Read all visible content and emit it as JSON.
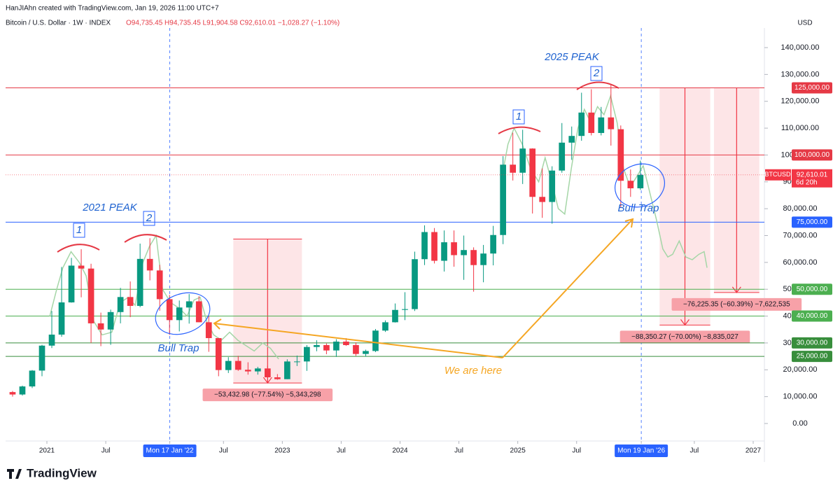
{
  "attribution": "HanJIAhn created with TradingView.com, Jan 19, 2026 11:00 UTC+7",
  "logo": "TradingView",
  "chart_data": {
    "type": "candlestick",
    "title": "Bitcoin / U.S. Dollar · 1W · INDEX",
    "ohlc": "O94,735.45 H94,735.45 L91,904.58 C92,610.01 −1,028.27 (−1.10%)",
    "currency": "USD",
    "up_color": "#089981",
    "down_color": "#f23645",
    "x": [
      "2020-09",
      "2020-10",
      "2020-11",
      "2020-12",
      "2021-01",
      "2021-02",
      "2021-03",
      "2021-04",
      "2021-05",
      "2021-06",
      "2021-07",
      "2021-08",
      "2021-09",
      "2021-10",
      "2021-11",
      "2021-12",
      "2022-01",
      "2022-02",
      "2022-03",
      "2022-04",
      "2022-05",
      "2022-06",
      "2022-07",
      "2022-08",
      "2022-09",
      "2022-10",
      "2022-11",
      "2022-12",
      "2023-01",
      "2023-02",
      "2023-03",
      "2023-04",
      "2023-05",
      "2023-06",
      "2023-07",
      "2023-08",
      "2023-09",
      "2023-10",
      "2023-11",
      "2023-12",
      "2024-01",
      "2024-02",
      "2024-03",
      "2024-04",
      "2024-05",
      "2024-06",
      "2024-07",
      "2024-08",
      "2024-09",
      "2024-10",
      "2024-11",
      "2024-12",
      "2025-01",
      "2025-02",
      "2025-03",
      "2025-04",
      "2025-05",
      "2025-06",
      "2025-07",
      "2025-08",
      "2025-09",
      "2025-10",
      "2025-11",
      "2025-12",
      "2026-01"
    ],
    "open": [
      11700,
      10800,
      13800,
      19700,
      29000,
      33100,
      45100,
      58800,
      57700,
      37300,
      35000,
      41500,
      47100,
      43800,
      61300,
      57000,
      46300,
      38500,
      43200,
      45500,
      37700,
      31800,
      19900,
      23300,
      20000,
      19400,
      20500,
      17200,
      16500,
      23100,
      23100,
      28500,
      29200,
      27200,
      30500,
      29200,
      25900,
      27000,
      34600,
      37700,
      42300,
      42600,
      61200,
      71300,
      60600,
      67500,
      62700,
      64600,
      59000,
      63300,
      70200,
      96400,
      93400,
      102400,
      84400,
      82500,
      94200,
      104600,
      107100,
      115800,
      108200,
      114000,
      109600,
      90400,
      87600
    ],
    "high": [
      12100,
      14100,
      19900,
      29300,
      41900,
      58300,
      61700,
      64900,
      59500,
      41300,
      42400,
      50500,
      52900,
      67000,
      69000,
      59100,
      47900,
      45800,
      48200,
      47400,
      40000,
      31900,
      24700,
      25200,
      22800,
      21100,
      21500,
      18400,
      23900,
      25300,
      29200,
      31000,
      29800,
      31400,
      31800,
      30200,
      27500,
      35200,
      38400,
      44700,
      48900,
      64000,
      73800,
      72800,
      71900,
      71900,
      70000,
      65600,
      66500,
      73600,
      99600,
      108300,
      109400,
      102500,
      95000,
      95800,
      111900,
      110600,
      123200,
      124500,
      117900,
      126200,
      111000,
      94600,
      97900
    ],
    "low": [
      10000,
      10400,
      13200,
      17600,
      28100,
      32300,
      45000,
      47000,
      30000,
      28800,
      29300,
      37300,
      39600,
      43300,
      53300,
      42000,
      33000,
      34300,
      37200,
      37700,
      26700,
      17600,
      18800,
      19600,
      18200,
      18200,
      15500,
      16300,
      16500,
      21400,
      19600,
      26900,
      25800,
      24800,
      28900,
      25200,
      24900,
      26600,
      34100,
      37600,
      38500,
      41900,
      59000,
      59600,
      56600,
      58400,
      53500,
      49100,
      52600,
      58900,
      66800,
      90500,
      89200,
      78200,
      76600,
      74400,
      93400,
      98200,
      105300,
      107300,
      107300,
      103500,
      80600,
      84400,
      87000
    ],
    "close": [
      10800,
      13800,
      19700,
      29000,
      33100,
      45100,
      58800,
      57700,
      37300,
      35000,
      41500,
      47100,
      43800,
      61300,
      57000,
      46300,
      38500,
      43200,
      45500,
      37700,
      31800,
      19900,
      23300,
      20000,
      19400,
      20500,
      17200,
      16500,
      23100,
      23100,
      28500,
      29200,
      27200,
      30500,
      29200,
      25900,
      27000,
      34600,
      37700,
      42300,
      42600,
      61200,
      71300,
      60600,
      67500,
      62700,
      64600,
      59000,
      63300,
      70200,
      96400,
      93400,
      102400,
      84400,
      82500,
      94200,
      104600,
      107100,
      115800,
      108200,
      114000,
      109600,
      90400,
      87600,
      92610.01
    ],
    "overlay": {
      "color": "#a5d6a7",
      "x": [
        "2021-01-10",
        "2021-02-01",
        "2021-02-20",
        "2021-03-15",
        "2021-04-10",
        "2021-05-01",
        "2021-05-25",
        "2021-06-20",
        "2021-07-20",
        "2021-08-15",
        "2021-09-10",
        "2021-10-01",
        "2021-10-25",
        "2021-11-15",
        "2021-12-05",
        "2021-12-25",
        "2022-01-20",
        "2022-02-15",
        "2022-03-10",
        "2022-04-01",
        "2022-04-20",
        "2022-05-10",
        "2022-06-01",
        "2022-06-25",
        "2022-07-20",
        "2022-08-15",
        "2022-09-10",
        "2022-10-05",
        "2022-11-01",
        "2022-11-25",
        "2022-12-20",
        "2023-06-01",
        "2024-11-10",
        "2024-12-01",
        "2024-12-20",
        "2025-01-15",
        "2025-02-10",
        "2025-03-05",
        "2025-03-25",
        "2025-04-15",
        "2025-05-05",
        "2025-05-25",
        "2025-06-15",
        "2025-07-05",
        "2025-07-25",
        "2025-08-15",
        "2025-09-05",
        "2025-09-25",
        "2025-10-15",
        "2025-11-05",
        "2025-11-25",
        "2025-12-15",
        "2026-01-05",
        "2026-01-25",
        "2026-02-15",
        "2026-03-05",
        "2026-03-25",
        "2026-04-10",
        "2026-04-25",
        "2026-05-15",
        "2026-06-05",
        "2026-06-25",
        "2026-07-15",
        "2026-08-01",
        "2026-08-10"
      ],
      "values": [
        40000,
        50000,
        58000,
        64000,
        60000,
        55000,
        38000,
        33000,
        34000,
        45000,
        47000,
        44000,
        60000,
        66000,
        70000,
        50000,
        45000,
        43000,
        40000,
        46000,
        47000,
        38000,
        33000,
        31000,
        34000,
        31000,
        29000,
        27000,
        30000,
        28000,
        24000,
        null,
        90000,
        104000,
        110000,
        104000,
        95000,
        90000,
        99000,
        90000,
        80000,
        78000,
        95000,
        110000,
        117000,
        112000,
        118000,
        115000,
        122000,
        112000,
        95000,
        88000,
        92000,
        96000,
        86000,
        76000,
        65000,
        62000,
        63000,
        68000,
        62000,
        61000,
        63000,
        64000,
        58000
      ]
    },
    "xlim": [
      "2020-08-25",
      "2027-02-01"
    ],
    "xticks": [
      {
        "value": "2021-01-01",
        "label": "2021"
      },
      {
        "value": "2021-07-01",
        "label": "Jul"
      },
      {
        "value": "2022-01-17",
        "label": "Mon 17 Jan '22",
        "highlight": true
      },
      {
        "value": "2022-07-01",
        "label": "Jul"
      },
      {
        "value": "2023-01-01",
        "label": "2023"
      },
      {
        "value": "2023-07-01",
        "label": "Jul"
      },
      {
        "value": "2024-01-01",
        "label": "2024"
      },
      {
        "value": "2024-07-01",
        "label": "Jul"
      },
      {
        "value": "2025-01-01",
        "label": "2025"
      },
      {
        "value": "2025-07-01",
        "label": "Jul"
      },
      {
        "value": "2026-01-19",
        "label": "Mon 19 Jan '26",
        "highlight": true
      },
      {
        "value": "2026-07-01",
        "label": "Jul"
      },
      {
        "value": "2027-01-01",
        "label": "2027"
      }
    ],
    "ylim": [
      -6000,
      147300
    ],
    "yticks": [
      {
        "value": 0,
        "label": "0.00"
      },
      {
        "value": 10000,
        "label": "10,000.00"
      },
      {
        "value": 20000,
        "label": "20,000.00"
      },
      {
        "value": 30000,
        "label": "30,000.00"
      },
      {
        "value": 40000,
        "label": "40,000.00"
      },
      {
        "value": 50000,
        "label": "50,000.00"
      },
      {
        "value": 60000,
        "label": "60,000.00"
      },
      {
        "value": 70000,
        "label": "70,000.00"
      },
      {
        "value": 80000,
        "label": "80,000.00"
      },
      {
        "value": 90000,
        "label": "90,000.00"
      },
      {
        "value": 100000,
        "label": "100,000.00"
      },
      {
        "value": 110000,
        "label": "110,000.00"
      },
      {
        "value": 120000,
        "label": "120,000.00"
      },
      {
        "value": 130000,
        "label": "130,000.00"
      },
      {
        "value": 140000,
        "label": "140,000.00"
      }
    ],
    "hlines": [
      {
        "value": 125000,
        "label": "125,000.00",
        "color": "#e53945"
      },
      {
        "value": 100000,
        "label": "100,000.00",
        "color": "#e53945"
      },
      {
        "value": 75000,
        "label": "75,000.00",
        "color": "#2962ff"
      },
      {
        "value": 50000,
        "label": "50,000.00",
        "color": "#4caf50"
      },
      {
        "value": 40000,
        "label": "40,000.00",
        "color": "#4caf50"
      },
      {
        "value": 30000,
        "label": "30,000.00",
        "color": "#388e3c"
      },
      {
        "value": 25000,
        "label": "25,000.00",
        "color": "#388e3c"
      }
    ],
    "price_line": {
      "value": 92610.01,
      "label": "92,610.01",
      "symbol": "BTCUSD",
      "countdown": "6d 20h",
      "color": "#f23645"
    },
    "measures": [
      {
        "x0": "2022-08-01",
        "x1": "2023-03-01",
        "top": 68700,
        "bottom": 15100,
        "label": "−53,432.98 (−77.54%) −5,343,298"
      },
      {
        "x0": "2026-03-15",
        "x1": "2026-08-20",
        "top": 125000,
        "bottom": 36650,
        "label": "−88,350.27 (−70.00%) −8,835,027"
      },
      {
        "x0": "2026-09-01",
        "x1": "2027-01-20",
        "top": 125000,
        "bottom": 48775,
        "label": "−76,225.35 (−60.39%) −7,622,535"
      }
    ],
    "annotations": [
      "2021 PEAK",
      "2025 PEAK",
      "1",
      "2",
      "1",
      "2",
      "Bull Trap",
      "Bull Trap",
      "We are here"
    ]
  }
}
